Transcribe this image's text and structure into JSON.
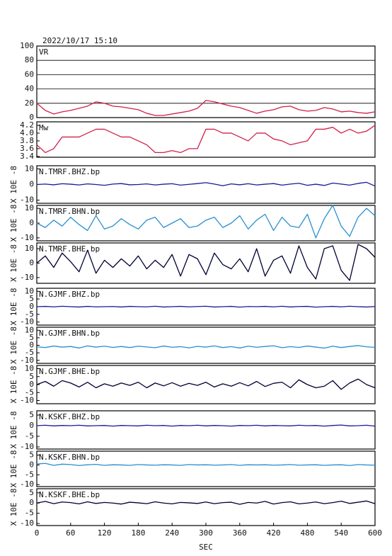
{
  "chart_data": {
    "type": "line",
    "title": "2022/10/17 15:10",
    "x_label": "SEC",
    "xlim": [
      0,
      600
    ],
    "xticks": [
      0,
      60,
      120,
      180,
      240,
      300,
      360,
      420,
      480,
      540,
      600
    ],
    "x": [
      0,
      15,
      30,
      45,
      60,
      75,
      90,
      105,
      120,
      135,
      150,
      165,
      180,
      195,
      210,
      225,
      240,
      255,
      270,
      285,
      300,
      315,
      330,
      345,
      360,
      375,
      390,
      405,
      420,
      435,
      450,
      465,
      480,
      495,
      510,
      525,
      540,
      555,
      570,
      585,
      600
    ],
    "panels": [
      {
        "ylim": [
          0,
          100
        ],
        "yticks": [
          0,
          20,
          40,
          60,
          80,
          100
        ],
        "grid": true,
        "series": [
          {
            "name": "VR",
            "color": "#d0204a",
            "values": [
              20,
              10,
              5,
              8,
              10,
              13,
              16,
              22,
              20,
              16,
              15,
              13,
              11,
              6,
              3,
              3,
              5,
              7,
              9,
              13,
              24,
              22,
              19,
              16,
              14,
              10,
              6,
              9,
              11,
              15,
              16,
              11,
              9,
              10,
              14,
              12,
              8,
              9,
              7,
              6,
              8
            ]
          }
        ]
      },
      {
        "ylim": [
          3.38,
          4.29
        ],
        "yticks": [
          3.4,
          3.6,
          3.8,
          {
            "value": 4,
            "label": "4.0"
          },
          4.2
        ],
        "grid": false,
        "series": [
          {
            "name": "Mw",
            "color": "#d0204a",
            "values": [
              3.7,
              3.5,
              3.6,
              3.9,
              3.9,
              3.9,
              4.0,
              4.1,
              4.1,
              4.0,
              3.9,
              3.9,
              3.8,
              3.7,
              3.5,
              3.5,
              3.55,
              3.5,
              3.6,
              3.6,
              4.1,
              4.1,
              4.0,
              4.0,
              3.9,
              3.8,
              4.0,
              4.0,
              3.85,
              3.8,
              3.7,
              3.75,
              3.8,
              4.1,
              4.1,
              4.15,
              4.0,
              4.1,
              4.0,
              4.05,
              4.2
            ]
          }
        ]
      },
      {
        "ylim": [
          -12,
          12
        ],
        "yticks": [
          -10,
          0,
          10
        ],
        "grid": false,
        "y_label": "X 10E -8",
        "series": [
          {
            "name": "N.TMRF.BHZ.bp",
            "color": "#1a1a9a",
            "values": [
              0,
              0.3,
              -0.2,
              0.5,
              0.2,
              -0.3,
              0.4,
              0,
              -0.5,
              0.3,
              0.6,
              -0.2,
              0,
              0.4,
              -0.3,
              0.2,
              0.5,
              -0.4,
              0.1,
              0.6,
              1.2,
              0.3,
              -0.8,
              0.4,
              -0.2,
              0.5,
              -0.3,
              0.2,
              0.6,
              -0.4,
              0.3,
              0.8,
              -0.5,
              0.2,
              -0.6,
              0.9,
              0.3,
              -0.4,
              0.7,
              1.4,
              -1.0
            ]
          }
        ]
      },
      {
        "ylim": [
          -12,
          12
        ],
        "yticks": [
          -10,
          0,
          10
        ],
        "grid": false,
        "y_label": "X 10E -8",
        "series": [
          {
            "name": "N.TMRF.BHN.bp",
            "color": "#2a8fd0",
            "values": [
              0,
              -3,
              2,
              -2,
              4,
              -1,
              -5,
              5,
              -4,
              -2,
              3,
              -1,
              -4,
              2,
              4,
              -3,
              0,
              3,
              -3,
              -2,
              2,
              4,
              -3,
              0,
              5,
              -4,
              2,
              6,
              -5,
              4,
              -2,
              -3,
              6,
              -10,
              3,
              12,
              -2,
              -9,
              4,
              10,
              5
            ]
          }
        ]
      },
      {
        "ylim": [
          -14,
          14
        ],
        "yticks": [
          -10,
          0,
          10
        ],
        "grid": false,
        "y_label": "X 10E -8",
        "series": [
          {
            "name": "N.TMRF.BHE.bp",
            "color": "#000033",
            "values": [
              0,
              5,
              -3,
              7,
              1,
              -6,
              9,
              -7,
              2,
              -3,
              3,
              -2,
              5,
              -4,
              2,
              -3,
              6,
              -9,
              6,
              3,
              -8,
              7,
              -1,
              -4,
              3,
              -6,
              10,
              -9,
              2,
              5,
              -7,
              12,
              -3,
              -11,
              10,
              12,
              -5,
              -12,
              13,
              10,
              4
            ]
          }
        ]
      },
      {
        "ylim": [
          -12,
          12
        ],
        "yticks": [
          -10,
          -5,
          0,
          5,
          10
        ],
        "grid": false,
        "y_label": "X 10E -8",
        "series": [
          {
            "name": "N.GJMF.BHZ.bp",
            "color": "#1a1a9a",
            "values": [
              0,
              0.2,
              -0.1,
              0.3,
              0,
              -0.2,
              0.2,
              -0.1,
              0,
              0.1,
              -0.2,
              0.2,
              0,
              -0.1,
              0.3,
              -0.2,
              0,
              0.2,
              -0.1,
              0.1,
              0.3,
              -0.2,
              0,
              0.2,
              -0.3,
              0.1,
              0,
              0.2,
              -0.1,
              0.3,
              -0.2,
              0.1,
              0.2,
              -0.3,
              0,
              0.2,
              -0.1,
              0.3,
              0,
              -0.2,
              0.1
            ]
          }
        ]
      },
      {
        "ylim": [
          -12,
          12
        ],
        "yticks": [
          -10,
          -5,
          0,
          5,
          10
        ],
        "grid": false,
        "y_label": "X 10E -8",
        "series": [
          {
            "name": "N.GJMF.BHN.bp",
            "color": "#2a8fd0",
            "values": [
              -1,
              -1.5,
              -0.5,
              -1.2,
              -0.8,
              -1.8,
              -0.4,
              -1.2,
              -0.6,
              -1.4,
              -0.8,
              -1.5,
              -0.6,
              -1.1,
              -1.6,
              -0.5,
              -1.3,
              -0.9,
              -1.7,
              -0.7,
              -1.2,
              -0.4,
              -1.5,
              -0.9,
              -1.8,
              -0.6,
              -1.3,
              -0.8,
              -0.3,
              -1.6,
              -0.9,
              -1.4,
              -0.5,
              -1.2,
              -1.9,
              -0.6,
              -1.5,
              -0.8,
              -0.2,
              -1.0,
              -1.4
            ]
          }
        ]
      },
      {
        "ylim": [
          -12,
          12
        ],
        "yticks": [
          -10,
          -5,
          0,
          5,
          10
        ],
        "grid": false,
        "y_label": "X 10E -8",
        "series": [
          {
            "name": "N.GJMF.BHE.bp",
            "color": "#000033",
            "values": [
              0,
              2,
              -1,
              2.5,
              1,
              -1.5,
              1.5,
              -2,
              0.5,
              -1,
              1,
              -0.5,
              1.5,
              -2,
              1,
              -0.8,
              1.2,
              -1,
              0.8,
              -0.5,
              1.5,
              -1.5,
              0.5,
              -1,
              1.2,
              -0.8,
              2,
              -1.2,
              0.8,
              1.5,
              -2,
              3,
              0,
              -2,
              -1,
              2.5,
              -3,
              1,
              3.5,
              0,
              -2
            ]
          }
        ]
      },
      {
        "ylim": [
          -11,
          7
        ],
        "yticks": [
          -10,
          -5,
          0,
          5
        ],
        "grid": false,
        "y_label": "X 10E -8",
        "series": [
          {
            "name": "N.KSKF.BHZ.bp",
            "color": "#1a1a9a",
            "values": [
              0,
              0.2,
              -0.1,
              0.1,
              0,
              0.2,
              -0.1,
              0,
              0.1,
              -0.2,
              0.1,
              0,
              -0.1,
              0.2,
              0,
              0.1,
              -0.2,
              0.1,
              0,
              0.2,
              -0.1,
              0.1,
              0,
              -0.2,
              0.1,
              0,
              0.2,
              -0.1,
              0.1,
              0,
              -0.1,
              0.2,
              0,
              0.1,
              -0.2,
              0.1,
              0.3,
              -0.1,
              0,
              0.2,
              -0.2
            ]
          }
        ]
      },
      {
        "ylim": [
          -11,
          7
        ],
        "yticks": [
          -10,
          -5,
          0,
          5
        ],
        "grid": false,
        "y_label": "X 10E -8",
        "series": [
          {
            "name": "N.KSKF.BHN.bp",
            "color": "#2a8fd0",
            "values": [
              0.5,
              0.8,
              -0.2,
              0.4,
              0.2,
              -0.3,
              0.1,
              0.3,
              -0.2,
              0.1,
              0,
              -0.2,
              0.2,
              0,
              -0.1,
              0.1,
              0,
              -0.2,
              0.2,
              0,
              0.1,
              -0.1,
              0,
              0.2,
              -0.2,
              0.1,
              0,
              0.1,
              -0.1,
              0,
              0.2,
              -0.1,
              0,
              0.1,
              -0.2,
              0,
              0.1,
              -0.3,
              0.2,
              0,
              -0.1
            ]
          }
        ]
      },
      {
        "ylim": [
          -11,
          7
        ],
        "yticks": [
          -10,
          -5,
          0,
          5
        ],
        "grid": false,
        "y_label": "X 10E -8",
        "series": [
          {
            "name": "N.KSKF.BHE.bp",
            "color": "#000033",
            "values": [
              0,
              0.8,
              -0.3,
              0.5,
              0.2,
              -0.4,
              0.6,
              -0.2,
              0.3,
              0,
              -0.5,
              0.4,
              0.1,
              -0.3,
              0.6,
              0,
              -0.4,
              0.3,
              0.1,
              -0.2,
              0.5,
              -0.3,
              0.2,
              0.4,
              -0.6,
              0.3,
              0,
              0.8,
              -0.5,
              0.2,
              0.6,
              -0.4,
              0,
              0.5,
              -0.3,
              0.2,
              0.9,
              -0.2,
              0.4,
              1.0,
              -0.3
            ]
          }
        ]
      }
    ]
  }
}
